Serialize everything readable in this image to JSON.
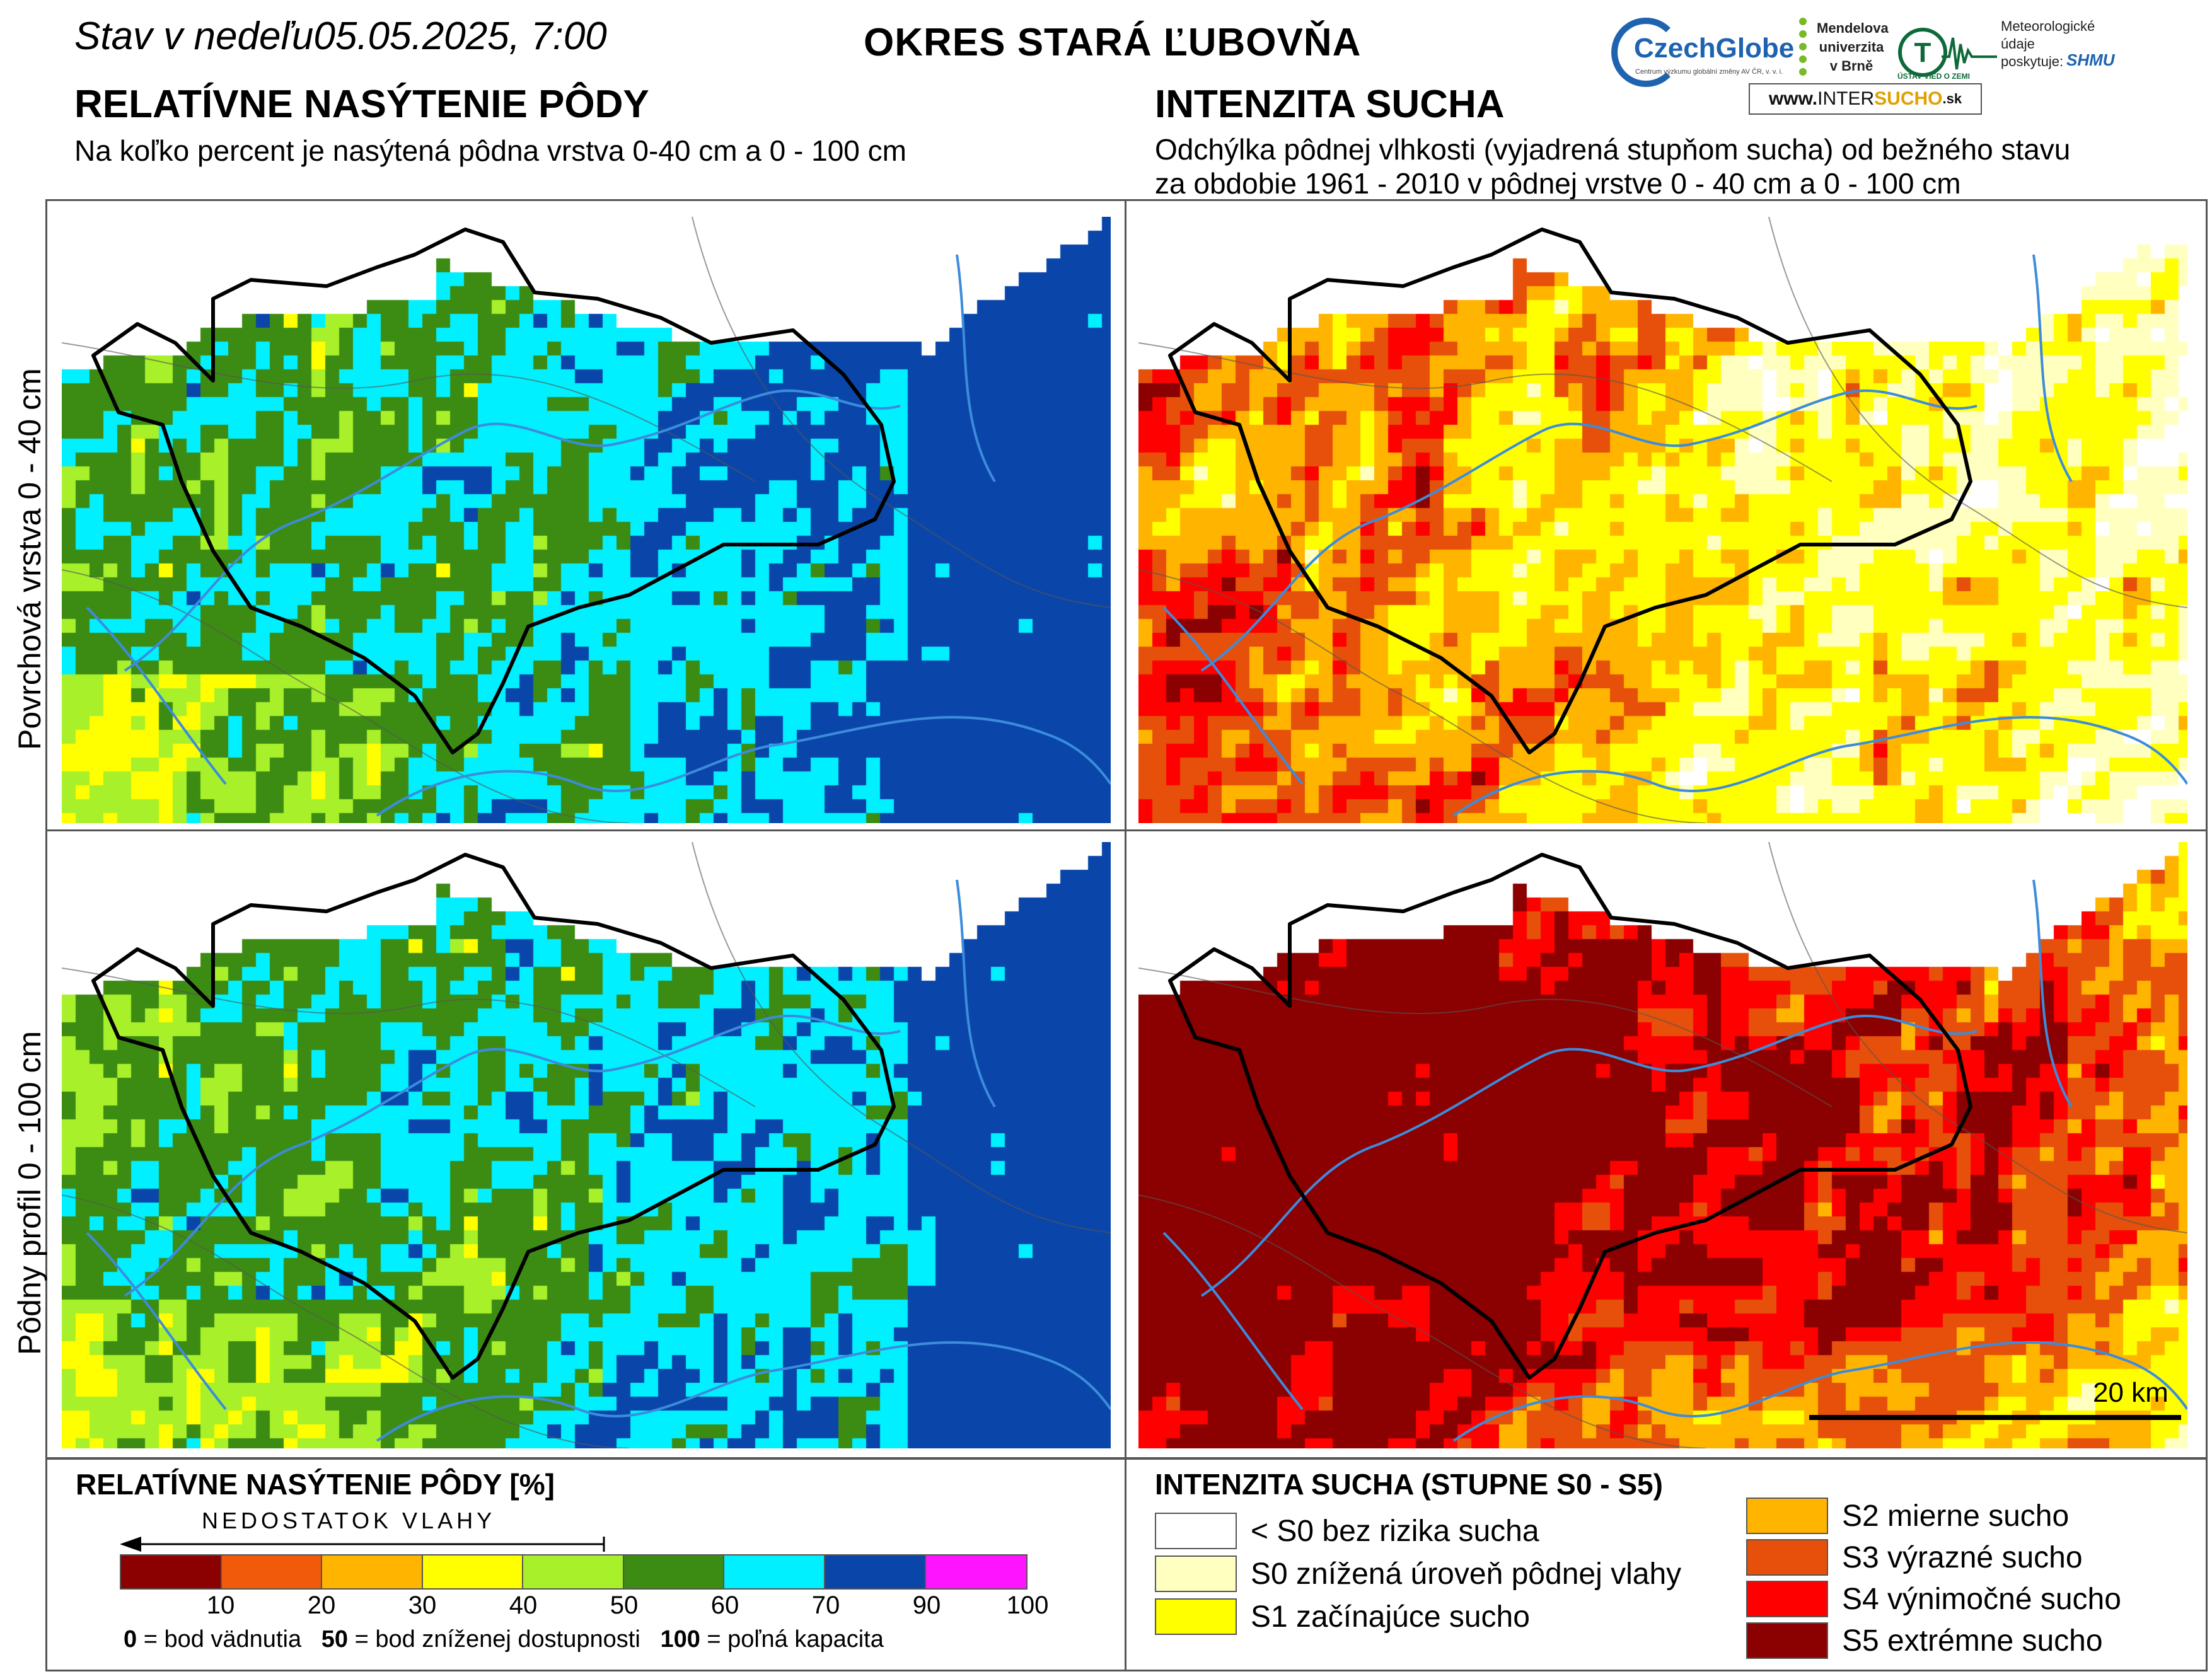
{
  "header": {
    "date_prefix": "Stav  v  nedeľu",
    "date_value": "05.05.2025, 7:00",
    "district": "OKRES  STARÁ ĽUBOVŇA",
    "left_title": "RELATÍVNE NASÝTENIE PÔDY",
    "left_subtitle": "Na koľko percent je nasýtená pôdna vrstva 0-40 cm a 0 - 100 cm",
    "right_title": "INTENZITA SUCHA",
    "right_subtitle_1": "Odchýlka pôdnej vlhkosti (vyjadrená stupňom sucha) od bežného stavu",
    "right_subtitle_2": "za obdobie 1961 - 2010 v pôdnej vrstve 0 - 40 cm a 0 - 100 cm"
  },
  "logos": {
    "czechglobe": "CzechGlobe",
    "czechglobe_small": "Centrum výzkumu globální změny AV ČR, v. v. i.",
    "mendel": [
      "Mendelova",
      "univerzita",
      "v Brně"
    ],
    "ustav": "ÚSTAV VIED O ZEMI",
    "meteo": [
      "Meteorologické",
      "údaje",
      "poskytuje:"
    ],
    "shmu": "SHMU",
    "intersucho_www": "www. ",
    "intersucho_inter": "INTER",
    "intersucho_sucho": "SUCHO",
    "intersucho_sk": ".sk"
  },
  "row_labels": {
    "top": "Povrchová vrstva 0 - 40 cm",
    "bottom": "Pôdny profil 0 - 100 cm"
  },
  "scale": {
    "label": "20 km"
  },
  "legend_saturation": {
    "title": "RELATÍVNE NASÝTENIE PÔDY [%]",
    "arrow_text": "NEDOSTATOK VLAHY",
    "classes": [
      {
        "from": 0,
        "to": 10,
        "color": "#8b0000"
      },
      {
        "from": 10,
        "to": 20,
        "color": "#f05a0a"
      },
      {
        "from": 20,
        "to": 30,
        "color": "#ffb400"
      },
      {
        "from": 30,
        "to": 40,
        "color": "#ffff00"
      },
      {
        "from": 40,
        "to": 50,
        "color": "#a8f02a"
      },
      {
        "from": 50,
        "to": 60,
        "color": "#3c8c14"
      },
      {
        "from": 60,
        "to": 70,
        "color": "#00f0ff"
      },
      {
        "from": 70,
        "to": 90,
        "color": "#0a46aa"
      },
      {
        "from": 90,
        "to": 100,
        "color": "#ff14ff"
      }
    ],
    "ticks": [
      "10",
      "20",
      "30",
      "40",
      "50",
      "60",
      "70",
      "90",
      "100"
    ],
    "note_0_num": "0",
    "note_0_text": " = bod vädnutia",
    "note_50_num": "50",
    "note_50_text": " = bod zníženej dostupnosti",
    "note_100_num": "100",
    "note_100_text": " = poľná kapacita"
  },
  "legend_drought": {
    "title": "INTENZITA SUCHA (STUPNE S0 - S5)",
    "classes": [
      {
        "label": "< S0 bez rizika sucha",
        "color": "#ffffff"
      },
      {
        "label": "S0 znížená úroveň pôdnej vlahy",
        "color": "#ffffc0"
      },
      {
        "label": "S1 začínajúce sucho",
        "color": "#ffff00"
      },
      {
        "label": "S2 mierne sucho",
        "color": "#ffb400"
      },
      {
        "label": "S3 výrazné sucho",
        "color": "#e6500a"
      },
      {
        "label": "S4 výnimočné sucho",
        "color": "#ff0000"
      },
      {
        "label": "S5 extrémne sucho",
        "color": "#8b0000"
      }
    ]
  },
  "colors": {
    "border": "#000000",
    "river": "#3c8cdc",
    "frame": "#555555"
  }
}
